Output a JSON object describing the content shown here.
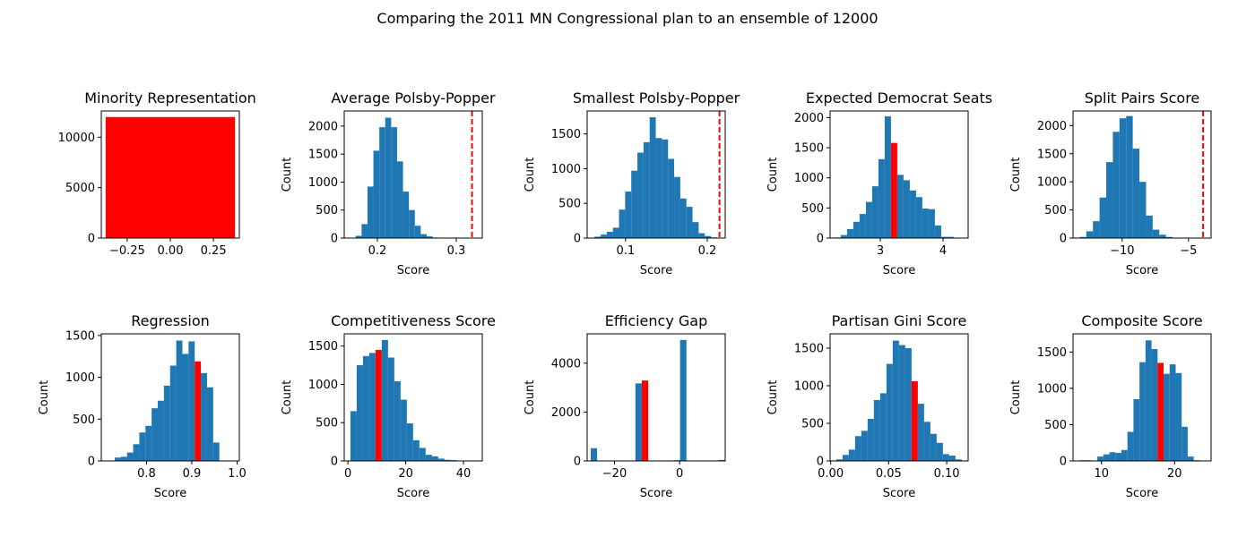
{
  "figure": {
    "title": "Comparing the 2011 MN Congressional plan to an ensemble of 12000"
  },
  "colors": {
    "hist": "#1f77b4",
    "highlight": "#ff0000",
    "dashed": "#ff0000"
  },
  "chart_data": [
    {
      "type": "bar",
      "title": "Minority Representation",
      "xlabel": "",
      "ylabel": "",
      "xlim": [
        -0.4,
        0.4
      ],
      "ylim": [
        0,
        12600
      ],
      "xticks": [
        -0.25,
        0.0,
        0.25
      ],
      "xtick_labels": [
        "−0.25",
        "0.00",
        "0.25"
      ],
      "yticks": [
        0,
        5000,
        10000
      ],
      "ytick_labels": [
        "0",
        "5000",
        "10000"
      ],
      "bins": [
        [
          -0.375,
          0.375,
          12000
        ]
      ],
      "highlight_bins": [
        0
      ]
    },
    {
      "type": "bar",
      "title": "Average Polsby-Popper",
      "xlabel": "Score",
      "ylabel": "Count",
      "xlim": [
        0.158,
        0.333
      ],
      "ylim": [
        0,
        2270
      ],
      "xticks": [
        0.2,
        0.3
      ],
      "xtick_labels": [
        "0.2",
        "0.3"
      ],
      "yticks": [
        0,
        500,
        1000,
        1500,
        2000
      ],
      "ytick_labels": [
        "0",
        "500",
        "1000",
        "1500",
        "2000"
      ],
      "bin_start": 0.165,
      "bin_width": 0.0075,
      "counts": [
        5,
        40,
        250,
        920,
        1560,
        1980,
        2150,
        1980,
        1370,
        830,
        500,
        220,
        70,
        30,
        10,
        5
      ],
      "vline": 0.32
    },
    {
      "type": "bar",
      "title": "Smallest Polsby-Popper",
      "xlabel": "Score",
      "ylabel": "Count",
      "xlim": [
        0.053,
        0.222
      ],
      "ylim": [
        0,
        1830
      ],
      "xticks": [
        0.1,
        0.2
      ],
      "xtick_labels": [
        "0.1",
        "0.2"
      ],
      "yticks": [
        0,
        500,
        1000,
        1500
      ],
      "ytick_labels": [
        "0",
        "500",
        "1000",
        "1500"
      ],
      "bin_start": 0.062,
      "bin_width": 0.0075,
      "counts": [
        20,
        50,
        90,
        150,
        410,
        670,
        970,
        1230,
        1380,
        1740,
        1440,
        1420,
        1140,
        880,
        570,
        450,
        230,
        70,
        30,
        10
      ],
      "vline": 0.215
    },
    {
      "type": "bar",
      "title": "Expected Democrat Seats",
      "xlabel": "Score",
      "ylabel": "Count",
      "xlim": [
        2.2,
        4.4
      ],
      "ylim": [
        0,
        2110
      ],
      "xticks": [
        3,
        4
      ],
      "xtick_labels": [
        "3",
        "4"
      ],
      "yticks": [
        0,
        500,
        1000,
        1500,
        2000
      ],
      "ytick_labels": [
        "0",
        "500",
        "1000",
        "1500",
        "2000"
      ],
      "bin_start": 2.27,
      "bin_width": 0.1,
      "counts": [
        10,
        50,
        150,
        270,
        400,
        600,
        860,
        1310,
        2020,
        1580,
        1050,
        960,
        790,
        680,
        490,
        480,
        210,
        20,
        20
      ],
      "highlight_bins": [
        9
      ]
    },
    {
      "type": "bar",
      "title": "Split Pairs Score",
      "xlabel": "Score",
      "ylabel": "Count",
      "xlim": [
        -13.7,
        -3.3
      ],
      "ylim": [
        0,
        2260
      ],
      "xticks": [
        -10,
        -5
      ],
      "xtick_labels": [
        "−10",
        "−5"
      ],
      "yticks": [
        0,
        500,
        1000,
        1500,
        2000
      ],
      "ytick_labels": [
        "0",
        "500",
        "1000",
        "1500",
        "2000"
      ],
      "bin_start": -13.2,
      "bin_width": 0.5,
      "counts": [
        20,
        120,
        300,
        720,
        1350,
        1890,
        2130,
        2170,
        1590,
        1000,
        400,
        150,
        60,
        20
      ],
      "vline": -3.9
    },
    {
      "type": "bar",
      "title": "Regression",
      "xlabel": "Score",
      "ylabel": "Count",
      "xlim": [
        0.7,
        1.005
      ],
      "ylim": [
        0,
        1520
      ],
      "xticks": [
        0.8,
        0.9,
        1.0
      ],
      "xtick_labels": [
        "0.8",
        "0.9",
        "1.0"
      ],
      "yticks": [
        0,
        500,
        1000,
        1500
      ],
      "ytick_labels": [
        "0",
        "500",
        "1000",
        "1500"
      ],
      "bin_start": 0.716,
      "bin_width": 0.0136,
      "counts": [
        5,
        40,
        50,
        100,
        200,
        340,
        420,
        630,
        720,
        900,
        1140,
        1440,
        1280,
        1430,
        1190,
        1050,
        880,
        220
      ],
      "highlight_bins": [
        14
      ]
    },
    {
      "type": "bar",
      "title": "Competitiveness Score",
      "xlabel": "Score",
      "ylabel": "Count",
      "xlim": [
        -1.3,
        46.5
      ],
      "ylim": [
        0,
        1660
      ],
      "xticks": [
        0,
        20,
        40
      ],
      "xtick_labels": [
        "0",
        "20",
        "40"
      ],
      "yticks": [
        0,
        500,
        1000,
        1500
      ],
      "ytick_labels": [
        "0",
        "500",
        "1000",
        "1500"
      ],
      "bin_start": 0.85,
      "bin_width": 2.17,
      "counts": [
        650,
        1250,
        1370,
        1410,
        1450,
        1580,
        1350,
        1040,
        800,
        490,
        270,
        170,
        80,
        60,
        30,
        15,
        10,
        5,
        5,
        5
      ],
      "highlight_bins": [
        4
      ]
    },
    {
      "type": "bar",
      "title": "Efficiency Gap",
      "xlabel": "Score",
      "ylabel": "Count",
      "xlim": [
        -28.4,
        14.0
      ],
      "ylim": [
        0,
        5200
      ],
      "xticks": [
        -20,
        0
      ],
      "xtick_labels": [
        "−20",
        "0"
      ],
      "yticks": [
        0,
        2000,
        4000
      ],
      "ytick_labels": [
        "0",
        "2000",
        "4000"
      ],
      "bin_start": -27.3,
      "bin_width": 1.96,
      "counts": [
        520,
        0,
        0,
        0,
        0,
        0,
        0,
        3170,
        3290,
        0,
        0,
        0,
        0,
        30,
        4950,
        0,
        0,
        0,
        0,
        0,
        40
      ],
      "highlight_bins": [
        8
      ]
    },
    {
      "type": "bar",
      "title": "Partisan Gini Score",
      "xlabel": "Score",
      "ylabel": "Count",
      "xlim": [
        -0.0005,
        0.1185
      ],
      "ylim": [
        0,
        1690
      ],
      "xticks": [
        0.0,
        0.05,
        0.1
      ],
      "xtick_labels": [
        "0.00",
        "0.05",
        "0.10"
      ],
      "yticks": [
        0,
        500,
        1000,
        1500
      ],
      "ytick_labels": [
        "0",
        "500",
        "1000",
        "1500"
      ],
      "bin_start": 0.0048,
      "bin_width": 0.00541,
      "counts": [
        20,
        80,
        150,
        330,
        400,
        560,
        810,
        900,
        1290,
        1600,
        1540,
        1500,
        1060,
        760,
        520,
        360,
        240,
        90,
        70,
        20
      ],
      "highlight_bins": [
        12
      ]
    },
    {
      "type": "bar",
      "title": "Composite Score",
      "xlabel": "Score",
      "ylabel": "Count",
      "xlim": [
        6.1,
        25.0
      ],
      "ylim": [
        0,
        1750
      ],
      "xticks": [
        10,
        20
      ],
      "xtick_labels": [
        "10",
        "20"
      ],
      "yticks": [
        0,
        500,
        1000,
        1500
      ],
      "ytick_labels": [
        "0",
        "500",
        "1000",
        "1500"
      ],
      "bin_start": 6.95,
      "bin_width": 0.825,
      "counts": [
        10,
        10,
        0,
        60,
        90,
        120,
        110,
        150,
        400,
        850,
        1360,
        1660,
        1540,
        1350,
        1200,
        1330,
        1210,
        470,
        60,
        10
      ],
      "highlight_bins": [
        13
      ]
    }
  ]
}
